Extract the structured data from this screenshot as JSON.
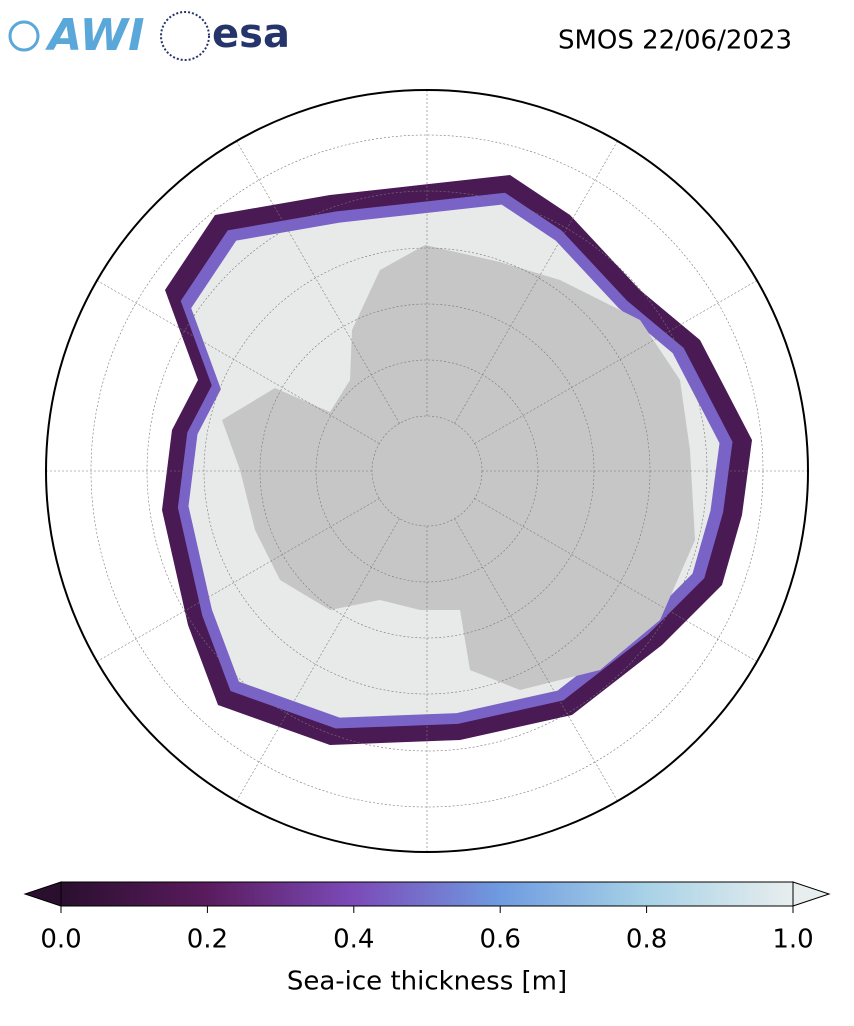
{
  "header": {
    "logo_left": "AWI",
    "logo_right": "esa",
    "title": "SMOS 22/06/2023"
  },
  "colorbar": {
    "label": "Sea-ice thickness [m]",
    "lim": [
      0,
      1
    ],
    "ticks": [
      {
        "value": 0,
        "label": "0.0"
      },
      {
        "value": 0.2,
        "label": "0.2"
      },
      {
        "value": 0.4,
        "label": "0.4"
      },
      {
        "value": 0.6,
        "label": "0.6"
      },
      {
        "value": 0.8,
        "label": "0.8"
      },
      {
        "value": 1,
        "label": "1.0"
      }
    ],
    "colors": [
      "#2a0f2e",
      "#5a1b5e",
      "#7b4bb8",
      "#6f9be0",
      "#a8d2e6",
      "#e8eeee"
    ]
  }
}
